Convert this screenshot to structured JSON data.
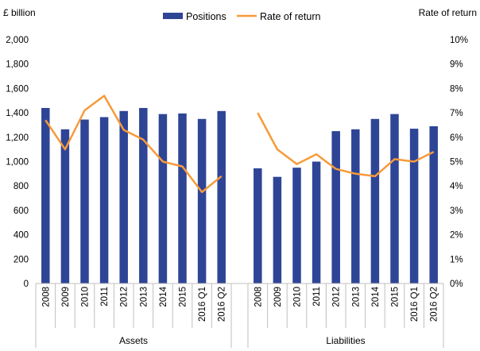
{
  "colors": {
    "bar": "#2e4596",
    "line": "#f79a3a",
    "axis": "#bfbfbf"
  },
  "chart_data": {
    "type": "bar+line",
    "ylabel_left": "£ billion",
    "ylabel_right": "Rate of return",
    "ylim_left": [
      0,
      2000
    ],
    "ylim_right": [
      0,
      10
    ],
    "left_ticks": [
      "0",
      "200",
      "400",
      "600",
      "800",
      "1,000",
      "1,200",
      "1,400",
      "1,600",
      "1,800",
      "2,000"
    ],
    "right_ticks": [
      "0%",
      "1%",
      "2%",
      "3%",
      "4%",
      "5%",
      "6%",
      "7%",
      "8%",
      "9%",
      "10%"
    ],
    "legend": {
      "bar_label": "Positions",
      "line_label": "Rate of return"
    },
    "groups": [
      {
        "name": "Assets",
        "categories": [
          "2008",
          "2009",
          "2010",
          "2011",
          "2012",
          "2013",
          "2014",
          "2015",
          "2016 Q1",
          "2016 Q2"
        ],
        "positions": [
          1440,
          1265,
          1345,
          1365,
          1415,
          1440,
          1390,
          1395,
          1350,
          1415
        ],
        "rate_of_return": [
          6.7,
          5.5,
          7.1,
          7.7,
          6.3,
          5.9,
          5.0,
          4.8,
          3.75,
          4.4
        ]
      },
      {
        "name": "Liabilities",
        "categories": [
          "2008",
          "2009",
          "2010",
          "2011",
          "2012",
          "2013",
          "2014",
          "2015",
          "2016 Q1",
          "2016 Q2"
        ],
        "positions": [
          945,
          875,
          950,
          1000,
          1250,
          1265,
          1350,
          1390,
          1270,
          1290
        ],
        "rate_of_return": [
          7.0,
          5.5,
          4.9,
          5.3,
          4.7,
          4.5,
          4.4,
          5.1,
          5.0,
          5.4
        ]
      }
    ]
  }
}
